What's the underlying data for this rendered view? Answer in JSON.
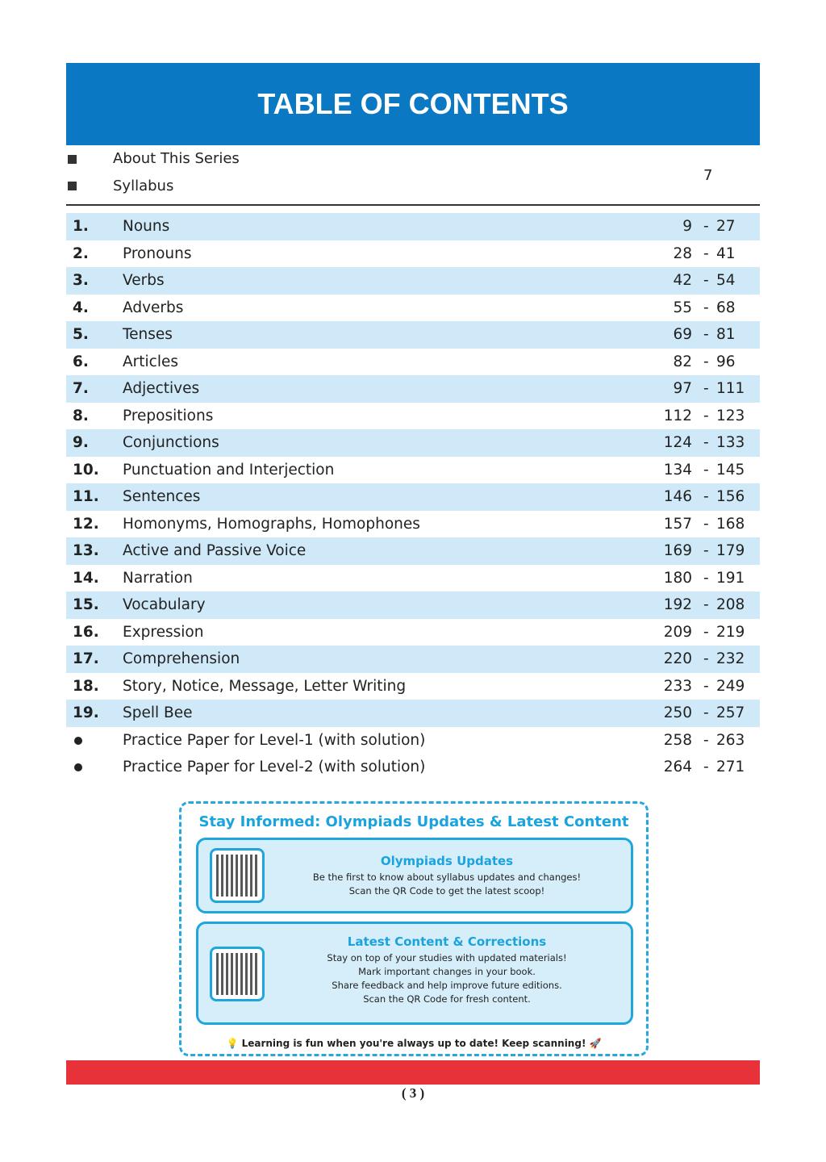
{
  "header": {
    "title": "TABLE OF CONTENTS"
  },
  "preface": {
    "items": [
      "About This Series",
      "Syllabus"
    ],
    "page": "7"
  },
  "chapters": [
    {
      "num": "1.",
      "title": "Nouns",
      "start": "9",
      "end": "27"
    },
    {
      "num": "2.",
      "title": "Pronouns",
      "start": "28",
      "end": "41"
    },
    {
      "num": "3.",
      "title": "Verbs",
      "start": "42",
      "end": "54"
    },
    {
      "num": "4.",
      "title": "Adverbs",
      "start": "55",
      "end": "68"
    },
    {
      "num": "5.",
      "title": "Tenses",
      "start": "69",
      "end": "81"
    },
    {
      "num": "6.",
      "title": "Articles",
      "start": "82",
      "end": "96"
    },
    {
      "num": "7.",
      "title": "Adjectives",
      "start": "97",
      "end": "111"
    },
    {
      "num": "8.",
      "title": "Prepositions",
      "start": "112",
      "end": "123"
    },
    {
      "num": "9.",
      "title": "Conjunctions",
      "start": "124",
      "end": "133"
    },
    {
      "num": "10.",
      "title": "Punctuation and Interjection",
      "start": "134",
      "end": "145"
    },
    {
      "num": "11.",
      "title": "Sentences",
      "start": "146",
      "end": "156"
    },
    {
      "num": "12.",
      "title": "Homonyms, Homographs, Homophones",
      "start": "157",
      "end": "168"
    },
    {
      "num": "13.",
      "title": "Active and Passive Voice",
      "start": "169",
      "end": "179"
    },
    {
      "num": "14.",
      "title": "Narration",
      "start": "180",
      "end": "191"
    },
    {
      "num": "15.",
      "title": "Vocabulary",
      "start": "192",
      "end": "208"
    },
    {
      "num": "16.",
      "title": "Expression",
      "start": "209",
      "end": "219"
    },
    {
      "num": "17.",
      "title": "Comprehension",
      "start": "220",
      "end": "232"
    },
    {
      "num": "18.",
      "title": "Story, Notice, Message, Letter Writing",
      "start": "233",
      "end": "249"
    },
    {
      "num": "19.",
      "title": "Spell Bee",
      "start": "250",
      "end": "257"
    },
    {
      "num": "",
      "title": "Practice Paper for Level-1 (with solution)",
      "start": "258",
      "end": "263"
    },
    {
      "num": "",
      "title": "Practice Paper for Level-2 (with solution)",
      "start": "264",
      "end": "271"
    }
  ],
  "info": {
    "title": "Stay Informed: Olympiads Updates & Latest Content",
    "card1": {
      "heading": "Olympiads Updates",
      "lines": [
        "Be the first to know about syllabus updates and changes!",
        "Scan the QR Code to get the latest scoop!"
      ]
    },
    "card2": {
      "heading": "Latest Content & Corrections",
      "lines": [
        "Stay on top of your studies with updated materials!",
        "Mark important changes in your book.",
        "Share feedback and help improve future editions.",
        "Scan the QR Code for fresh content."
      ]
    },
    "footer": "Learning is fun when you're always up to date! Keep scanning!"
  },
  "page_number": "( 3 )",
  "colors": {
    "header": "#0b78c4",
    "row_highlight": "#cfe9f8",
    "accent": "#1fa6dd",
    "footer_bar": "#e8323a"
  }
}
